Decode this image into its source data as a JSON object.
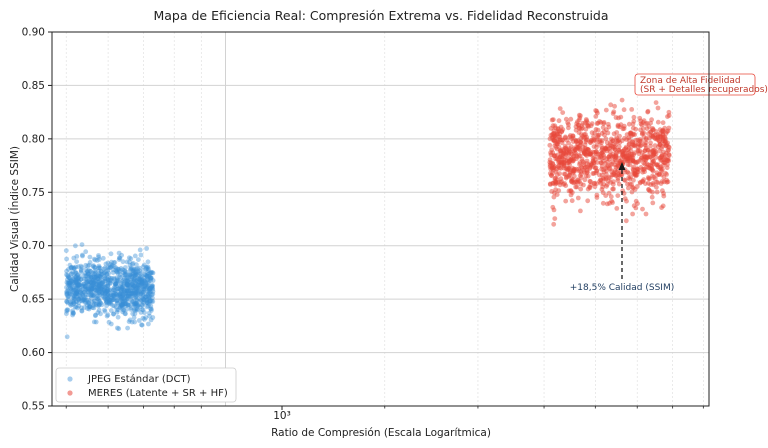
{
  "chart_data": {
    "type": "scatter",
    "title": "Mapa de Eficiencia Real: Compresión Extrema vs. Fidelidad Reconstruida",
    "xlabel": "Ratio de Compresión (Escala Logarítmica)",
    "ylabel": "Calidad Visual (Índice SSIM)",
    "xscale": "log",
    "xlim": [
      470,
      8200
    ],
    "ylim": [
      0.55,
      0.9
    ],
    "yticks": [
      "0.55",
      "0.60",
      "0.65",
      "0.70",
      "0.75",
      "0.80",
      "0.85",
      "0.90"
    ],
    "xtick_major": "10³",
    "grid": true,
    "legend_position": "bottom-left",
    "series": [
      {
        "name": "JPEG Estándar (DCT)",
        "color": "#3a8fd6",
        "point_count": 1000,
        "x_range": [
          500,
          730
        ],
        "y_center": 0.66,
        "y_sd": 0.013,
        "y_range": [
          0.613,
          0.716
        ]
      },
      {
        "name": "MERES (Latente + SR + HF)",
        "color": "#e8473a",
        "point_count": 1000,
        "x_range": [
          4100,
          6900
        ],
        "y_center": 0.782,
        "y_sd": 0.02,
        "y_range": [
          0.72,
          0.842
        ]
      }
    ],
    "annotations": [
      {
        "text_lines": [
          "Zona de Alta Fidelidad",
          "(SR + Detalles recuperados)"
        ],
        "color": "#c0392b",
        "x": 5300,
        "y": 0.846
      },
      {
        "text": "+18,5% Calidad (SSIM)",
        "color": "#223f62",
        "arrow_from": [
          5300,
          0.668
        ],
        "arrow_to": [
          5300,
          0.78
        ]
      }
    ]
  }
}
